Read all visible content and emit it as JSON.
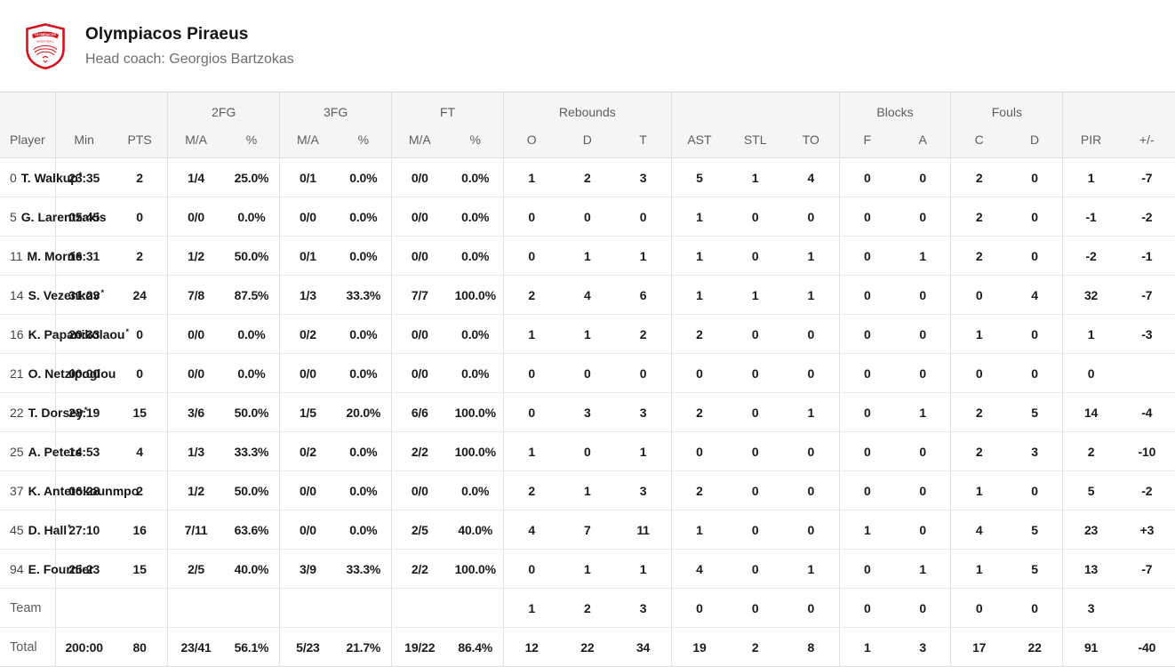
{
  "header": {
    "team_name": "Olympiacos Piraeus",
    "coach_line": "Head coach: Georgios Bartzokas",
    "logo": {
      "name": "olympiacos-crest",
      "arc_text": "OLYMPIACOS",
      "sub_text": "BASKETBALL",
      "red": "#d6131c"
    }
  },
  "table": {
    "group_headers": [
      {
        "label": "",
        "span": 1
      },
      {
        "label": "",
        "span": 2
      },
      {
        "label": "2FG",
        "span": 2
      },
      {
        "label": "3FG",
        "span": 2
      },
      {
        "label": "FT",
        "span": 2
      },
      {
        "label": "Rebounds",
        "span": 3
      },
      {
        "label": "",
        "span": 3
      },
      {
        "label": "Blocks",
        "span": 2
      },
      {
        "label": "Fouls",
        "span": 2
      },
      {
        "label": "",
        "span": 2
      }
    ],
    "columns": [
      "Player",
      "Min",
      "PTS",
      "M/A",
      "%",
      "M/A",
      "%",
      "M/A",
      "%",
      "O",
      "D",
      "T",
      "AST",
      "STL",
      "TO",
      "F",
      "A",
      "C",
      "D",
      "PIR",
      "+/-"
    ],
    "rows": [
      {
        "type": "player",
        "number": "0",
        "name": "T. Walkup",
        "starter_mark": "*",
        "cells": [
          "23:35",
          "2",
          "1/4",
          "25.0%",
          "0/1",
          "0.0%",
          "0/0",
          "0.0%",
          "1",
          "2",
          "3",
          "5",
          "1",
          "4",
          "0",
          "0",
          "2",
          "0",
          "1",
          "-7"
        ]
      },
      {
        "type": "player",
        "number": "5",
        "name": "G. Larentzakis",
        "starter_mark": "",
        "cells": [
          "05:45",
          "0",
          "0/0",
          "0.0%",
          "0/0",
          "0.0%",
          "0/0",
          "0.0%",
          "0",
          "0",
          "0",
          "1",
          "0",
          "0",
          "0",
          "0",
          "2",
          "0",
          "-1",
          "-2"
        ]
      },
      {
        "type": "player",
        "number": "11",
        "name": "M. Morris",
        "starter_mark": "",
        "cells": [
          "16:31",
          "2",
          "1/2",
          "50.0%",
          "0/1",
          "0.0%",
          "0/0",
          "0.0%",
          "0",
          "1",
          "1",
          "1",
          "0",
          "1",
          "0",
          "1",
          "2",
          "0",
          "-2",
          "-1"
        ]
      },
      {
        "type": "player",
        "number": "14",
        "name": "S. Vezenkov",
        "starter_mark": "*",
        "cells": [
          "31:23",
          "24",
          "7/8",
          "87.5%",
          "1/3",
          "33.3%",
          "7/7",
          "100.0%",
          "2",
          "4",
          "6",
          "1",
          "1",
          "1",
          "0",
          "0",
          "0",
          "4",
          "32",
          "-7"
        ]
      },
      {
        "type": "player",
        "number": "16",
        "name": "K. Papanikolaou",
        "starter_mark": "*",
        "cells": [
          "20:33",
          "0",
          "0/0",
          "0.0%",
          "0/2",
          "0.0%",
          "0/0",
          "0.0%",
          "1",
          "1",
          "2",
          "2",
          "0",
          "0",
          "0",
          "0",
          "1",
          "0",
          "1",
          "-3"
        ]
      },
      {
        "type": "player",
        "number": "21",
        "name": "O. Netzipoglou",
        "starter_mark": "",
        "cells": [
          "00:00",
          "0",
          "0/0",
          "0.0%",
          "0/0",
          "0.0%",
          "0/0",
          "0.0%",
          "0",
          "0",
          "0",
          "0",
          "0",
          "0",
          "0",
          "0",
          "0",
          "0",
          "0",
          ""
        ]
      },
      {
        "type": "player",
        "number": "22",
        "name": "T. Dorsey",
        "starter_mark": "*",
        "cells": [
          "28:19",
          "15",
          "3/6",
          "50.0%",
          "1/5",
          "20.0%",
          "6/6",
          "100.0%",
          "0",
          "3",
          "3",
          "2",
          "0",
          "1",
          "0",
          "1",
          "2",
          "5",
          "14",
          "-4"
        ]
      },
      {
        "type": "player",
        "number": "25",
        "name": "A. Peters",
        "starter_mark": "",
        "cells": [
          "14:53",
          "4",
          "1/3",
          "33.3%",
          "0/2",
          "0.0%",
          "2/2",
          "100.0%",
          "1",
          "0",
          "1",
          "0",
          "0",
          "0",
          "0",
          "0",
          "2",
          "3",
          "2",
          "-10"
        ]
      },
      {
        "type": "player",
        "number": "37",
        "name": "K. Antetokounmpo",
        "starter_mark": "",
        "cells": [
          "06:28",
          "2",
          "1/2",
          "50.0%",
          "0/0",
          "0.0%",
          "0/0",
          "0.0%",
          "2",
          "1",
          "3",
          "2",
          "0",
          "0",
          "0",
          "0",
          "1",
          "0",
          "5",
          "-2"
        ]
      },
      {
        "type": "player",
        "number": "45",
        "name": "D. Hall",
        "starter_mark": "*",
        "cells": [
          "27:10",
          "16",
          "7/11",
          "63.6%",
          "0/0",
          "0.0%",
          "2/5",
          "40.0%",
          "4",
          "7",
          "11",
          "1",
          "0",
          "0",
          "1",
          "0",
          "4",
          "5",
          "23",
          "+3"
        ]
      },
      {
        "type": "player",
        "number": "94",
        "name": "E. Fournier",
        "starter_mark": "",
        "cells": [
          "25:23",
          "15",
          "2/5",
          "40.0%",
          "3/9",
          "33.3%",
          "2/2",
          "100.0%",
          "0",
          "1",
          "1",
          "4",
          "0",
          "1",
          "0",
          "1",
          "1",
          "5",
          "13",
          "-7"
        ]
      },
      {
        "type": "summary",
        "label": "Team",
        "cells": [
          "",
          "",
          "",
          "",
          "",
          "",
          "",
          "",
          "1",
          "2",
          "3",
          "0",
          "0",
          "0",
          "0",
          "0",
          "0",
          "0",
          "3",
          ""
        ]
      },
      {
        "type": "summary",
        "label": "Total",
        "cells": [
          "200:00",
          "80",
          "23/41",
          "56.1%",
          "5/23",
          "21.7%",
          "19/22",
          "86.4%",
          "12",
          "22",
          "34",
          "19",
          "2",
          "8",
          "1",
          "3",
          "17",
          "22",
          "91",
          "-40"
        ]
      }
    ]
  }
}
